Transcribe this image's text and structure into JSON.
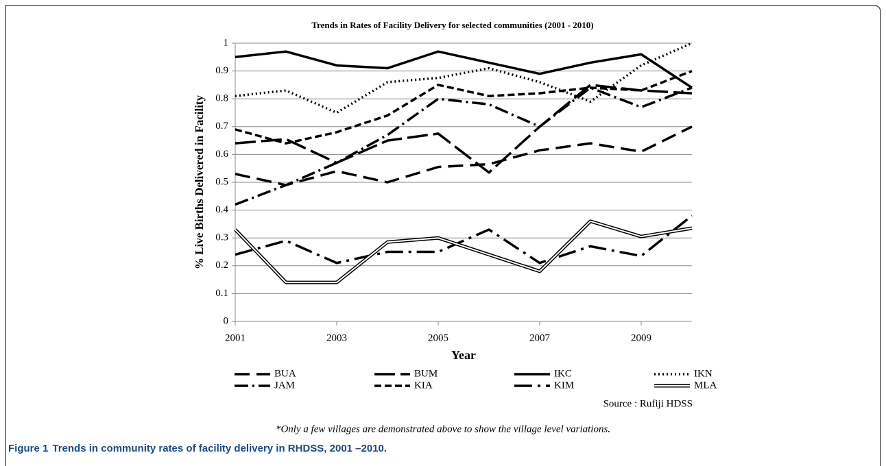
{
  "chart_data": {
    "type": "line",
    "title": "Trends in Rates of Facility Delivery for selected communities (2001 - 2010)",
    "y_label": "% Live Births Delivered in Facility",
    "x_label": "Year",
    "source": "Source : Rufiji HDSS",
    "note": "*Only a few villages are demonstrated above to show the village level variations.",
    "caption_label": "Figure 1",
    "caption_text": "Trends in community rates of facility delivery in RHDSS, 2001 –2010.",
    "x": [
      2001,
      2002,
      2003,
      2004,
      2005,
      2006,
      2007,
      2008,
      2009,
      2010
    ],
    "xlim": [
      2001,
      2010
    ],
    "xticks": [
      2001,
      2003,
      2005,
      2007,
      2009
    ],
    "ylim": [
      0,
      1
    ],
    "yticks": [
      0,
      0.1,
      0.2,
      0.3,
      0.4,
      0.5,
      0.6,
      0.7,
      0.8,
      0.9,
      1
    ],
    "grid": true,
    "series": [
      {
        "name": "BUA",
        "color": "#000000",
        "dash": "22 10",
        "values": [
          0.53,
          0.49,
          0.54,
          0.5,
          0.555,
          0.565,
          0.615,
          0.64,
          0.61,
          0.7
        ]
      },
      {
        "name": "BUM",
        "color": "#000000",
        "dash": "30 8",
        "values": [
          0.64,
          0.655,
          0.57,
          0.65,
          0.675,
          0.535,
          0.7,
          0.85,
          0.83,
          0.82
        ]
      },
      {
        "name": "IKC",
        "color": "#000000",
        "dash": "none",
        "values": [
          0.95,
          0.97,
          0.92,
          0.91,
          0.97,
          0.93,
          0.89,
          0.93,
          0.96,
          0.84
        ]
      },
      {
        "name": "IKN",
        "color": "#000000",
        "dash": "2 4",
        "values": [
          0.81,
          0.83,
          0.75,
          0.86,
          0.875,
          0.91,
          0.86,
          0.79,
          0.92,
          1.0
        ]
      },
      {
        "name": "JAM",
        "color": "#000000",
        "dash": "20 6 3 6",
        "values": [
          0.42,
          0.49,
          0.57,
          0.67,
          0.8,
          0.78,
          0.7,
          0.84,
          0.77,
          0.84
        ]
      },
      {
        "name": "KIA",
        "color": "#000000",
        "dash": "10 5",
        "values": [
          0.69,
          0.64,
          0.68,
          0.74,
          0.85,
          0.81,
          0.82,
          0.84,
          0.83,
          0.9
        ]
      },
      {
        "name": "KIM",
        "color": "#000000",
        "dash": "26 8 4 8",
        "values": [
          0.24,
          0.29,
          0.21,
          0.25,
          0.25,
          0.33,
          0.21,
          0.27,
          0.235,
          0.38
        ]
      },
      {
        "name": "MLA",
        "color": "#000000",
        "dash": "double",
        "values": [
          0.33,
          0.14,
          0.14,
          0.285,
          0.3,
          0.24,
          0.18,
          0.36,
          0.305,
          0.335
        ]
      }
    ]
  }
}
